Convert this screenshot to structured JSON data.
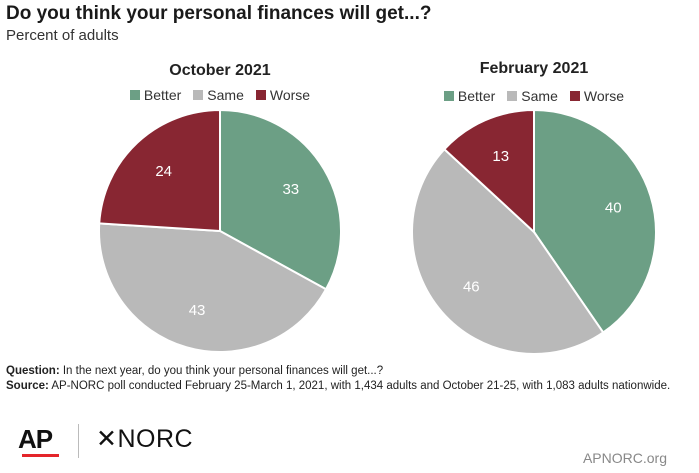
{
  "title": "Do you think your personal finances will get...?",
  "subtitle": "Percent of adults",
  "colors": {
    "better": "#6c9f85",
    "same": "#b9b9b9",
    "worse": "#882632"
  },
  "chart_data": [
    {
      "type": "pie",
      "title": "October 2021",
      "legend": [
        "Better",
        "Same",
        "Worse"
      ],
      "legend_placement": "top",
      "slices": [
        {
          "label": "Better",
          "value": 33,
          "color": "#6c9f85"
        },
        {
          "label": "Same",
          "value": 43,
          "color": "#b9b9b9"
        },
        {
          "label": "Worse",
          "value": 24,
          "color": "#882632"
        }
      ]
    },
    {
      "type": "pie",
      "title": "February 2021",
      "legend": [
        "Better",
        "Same",
        "Worse"
      ],
      "legend_placement": "top",
      "slices": [
        {
          "label": "Better",
          "value": 40,
          "color": "#6c9f85"
        },
        {
          "label": "Same",
          "value": 46,
          "color": "#b9b9b9"
        },
        {
          "label": "Worse",
          "value": 13,
          "color": "#882632"
        }
      ]
    }
  ],
  "notes": {
    "question_label": "Question:",
    "question_text": " In the next year, do you think your personal finances will get...?",
    "source_label": "Source:",
    "source_text": " AP-NORC poll conducted February 25-March 1, 2021, with 1,434 adults and  October 21-25, with 1,083 adults nationwide."
  },
  "footer": {
    "ap_logo": "AP",
    "norc_logo": "✕NORC",
    "site": "APNORC.org"
  }
}
